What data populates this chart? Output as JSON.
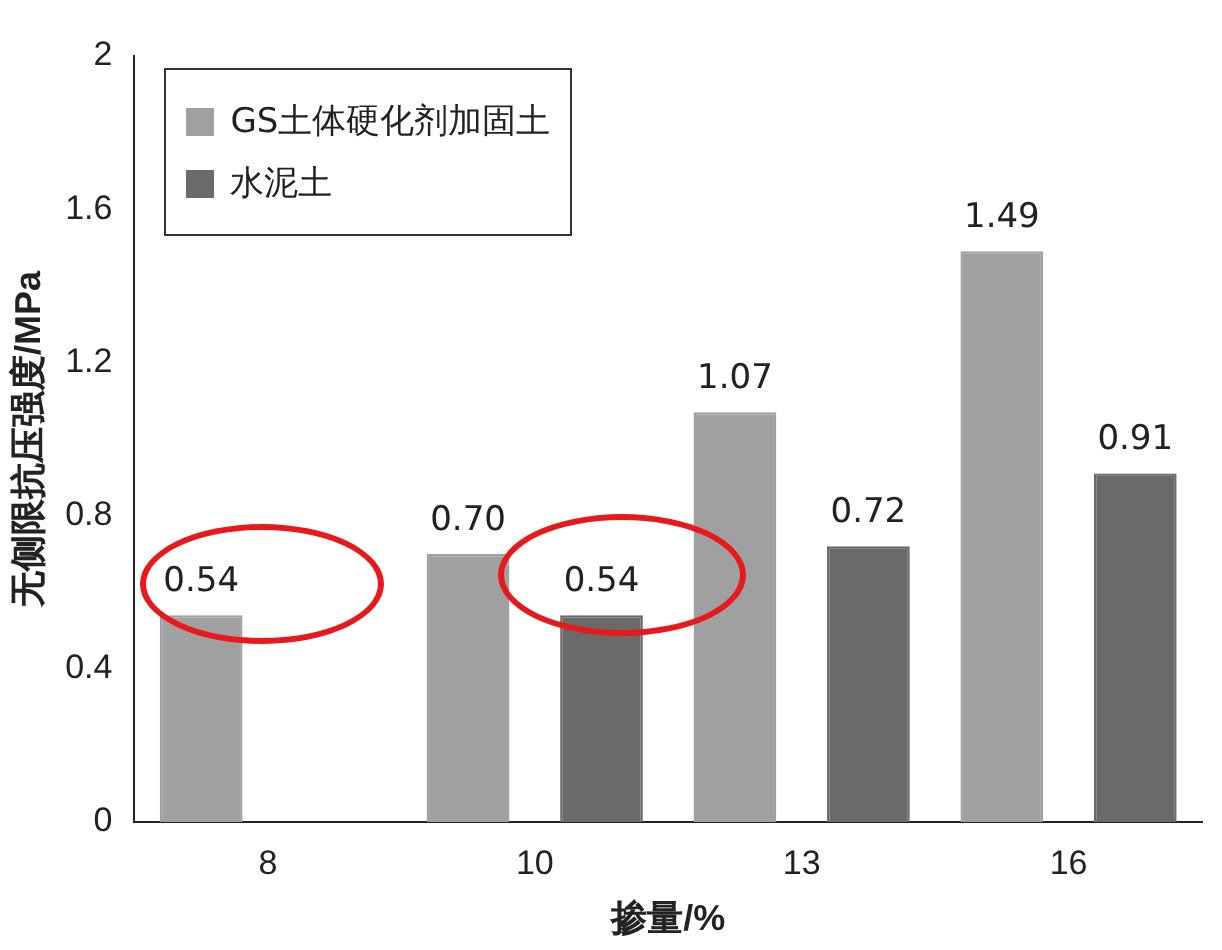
{
  "chart_data": {
    "type": "bar",
    "xlabel": "掺量/%",
    "ylabel": "无侧限抗压强度/MPa",
    "categories": [
      "8",
      "10",
      "13",
      "16"
    ],
    "series": [
      {
        "name": "GS土体硬化剂加固土",
        "color": "#a0a0a0",
        "values": [
          0.54,
          0.7,
          1.07,
          1.49
        ],
        "value_labels": [
          "0.54",
          "0.70",
          "1.07",
          "1.49"
        ]
      },
      {
        "name": "水泥土",
        "color": "#6a6a6a",
        "values": [
          null,
          0.54,
          0.72,
          0.91
        ],
        "value_labels": [
          null,
          "0.54",
          "0.72",
          "0.91"
        ]
      }
    ],
    "ylim": [
      0,
      2
    ],
    "yticks": [
      0,
      {
        "value": 0.4,
        "label": "0.4"
      },
      {
        "value": 0.8,
        "label": "0.8"
      },
      {
        "value": 1.2,
        "label": "1.2"
      },
      {
        "value": 1.6,
        "label": "1.6"
      },
      2
    ],
    "grid": false,
    "legend": "top left"
  }
}
